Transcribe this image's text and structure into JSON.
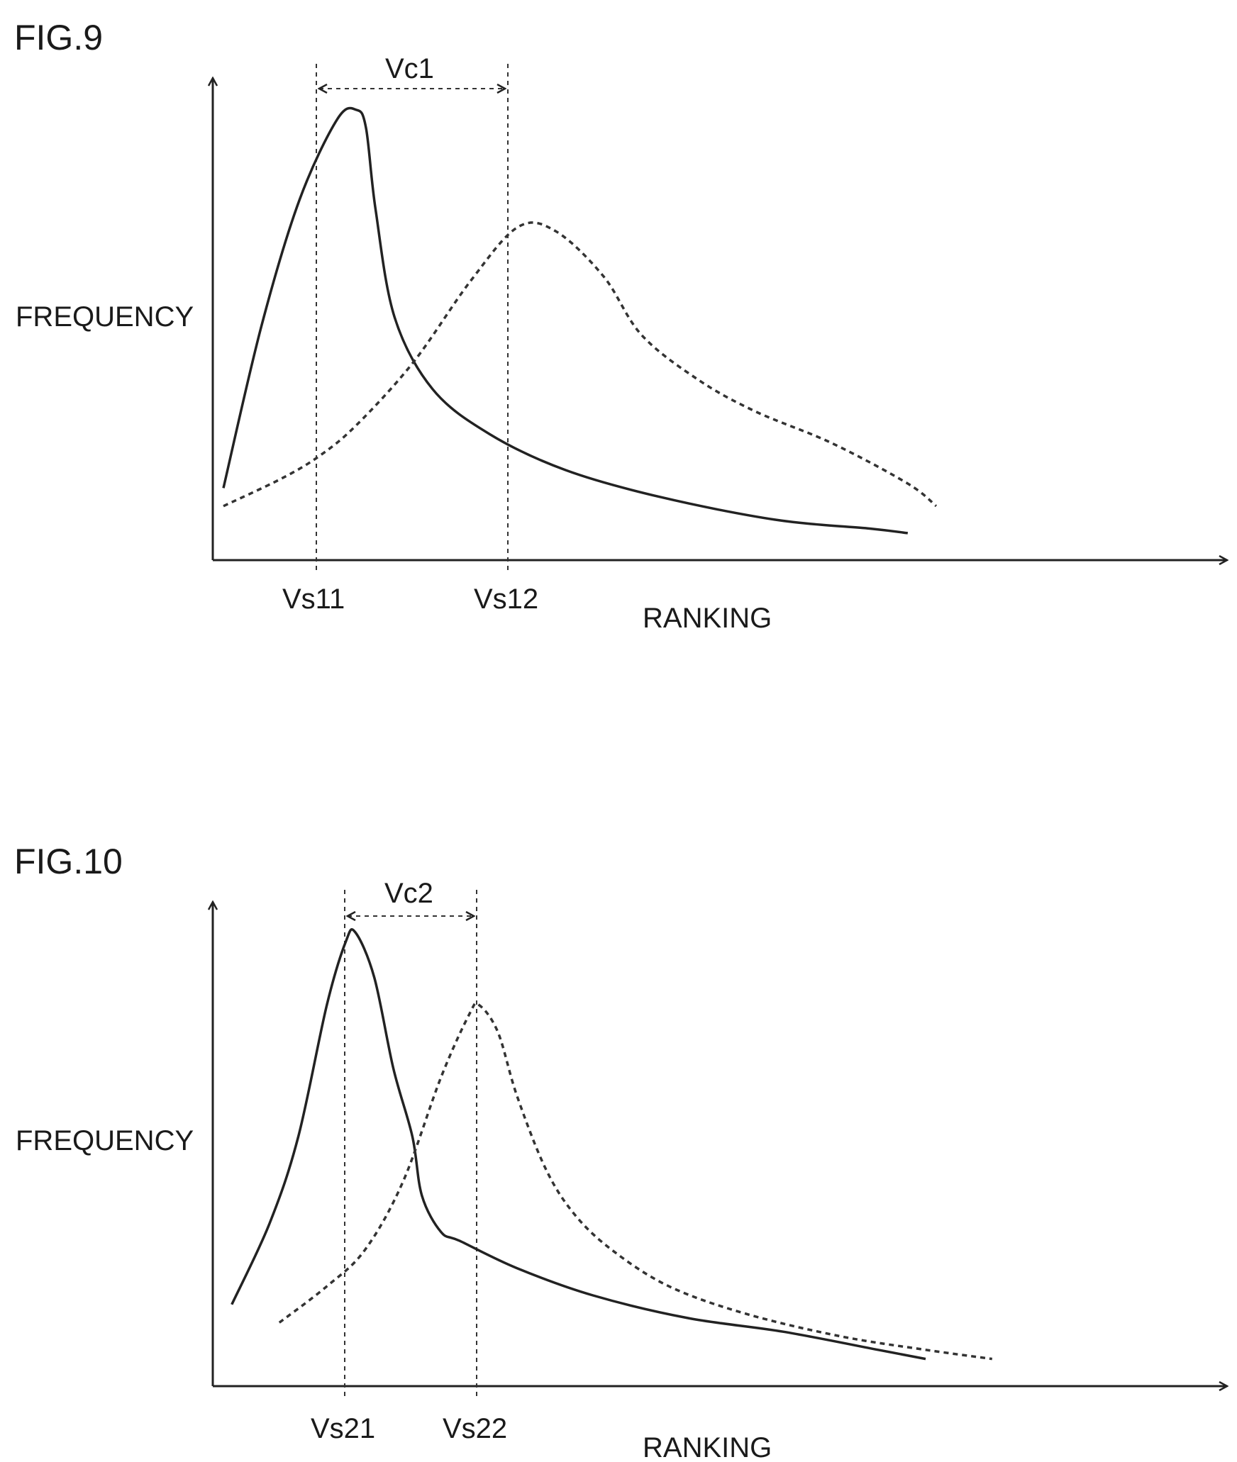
{
  "chart_data": [
    {
      "type": "line",
      "figure_label": "FIG.9",
      "ylabel": "FREQUENCY",
      "xlabel": "RANKING",
      "grid": false,
      "x_ticks": [
        "Vs11",
        "Vs12"
      ],
      "interval_label": "Vc1",
      "series": [
        {
          "style": "solid",
          "x": [
            0.0,
            0.04,
            0.08,
            0.12,
            0.14,
            0.15,
            0.16,
            0.18,
            0.22,
            0.28,
            0.36,
            0.46,
            0.58,
            0.68,
            0.72
          ],
          "y": [
            0.16,
            0.52,
            0.8,
            0.98,
            1.0,
            0.96,
            0.78,
            0.54,
            0.38,
            0.28,
            0.2,
            0.14,
            0.09,
            0.07,
            0.06
          ]
        },
        {
          "style": "dashed",
          "x": [
            0.0,
            0.06,
            0.1,
            0.14,
            0.2,
            0.26,
            0.31,
            0.35,
            0.4,
            0.44,
            0.5,
            0.56,
            0.64,
            0.72,
            0.75
          ],
          "y": [
            0.12,
            0.18,
            0.23,
            0.3,
            0.44,
            0.62,
            0.74,
            0.73,
            0.63,
            0.5,
            0.4,
            0.33,
            0.26,
            0.17,
            0.12
          ]
        }
      ]
    },
    {
      "type": "line",
      "figure_label": "FIG.10",
      "ylabel": "FREQUENCY",
      "xlabel": "RANKING",
      "grid": false,
      "x_ticks": [
        "Vs21",
        "Vs22"
      ],
      "interval_label": "Vc2",
      "series": [
        {
          "style": "solid",
          "x": [
            0.02,
            0.06,
            0.09,
            0.12,
            0.14,
            0.15,
            0.17,
            0.19,
            0.21,
            0.22,
            0.24,
            0.26,
            0.32,
            0.4,
            0.5,
            0.6,
            0.7,
            0.75
          ],
          "y": [
            0.18,
            0.36,
            0.55,
            0.84,
            0.98,
            1.0,
            0.9,
            0.7,
            0.55,
            0.42,
            0.34,
            0.32,
            0.26,
            0.2,
            0.15,
            0.12,
            0.08,
            0.06
          ]
        },
        {
          "style": "dashed",
          "x": [
            0.07,
            0.12,
            0.16,
            0.2,
            0.24,
            0.27,
            0.28,
            0.3,
            0.32,
            0.35,
            0.38,
            0.42,
            0.48,
            0.56,
            0.66,
            0.75,
            0.82
          ],
          "y": [
            0.14,
            0.22,
            0.3,
            0.45,
            0.68,
            0.82,
            0.84,
            0.78,
            0.64,
            0.48,
            0.38,
            0.3,
            0.22,
            0.16,
            0.11,
            0.08,
            0.06
          ]
        }
      ]
    }
  ]
}
